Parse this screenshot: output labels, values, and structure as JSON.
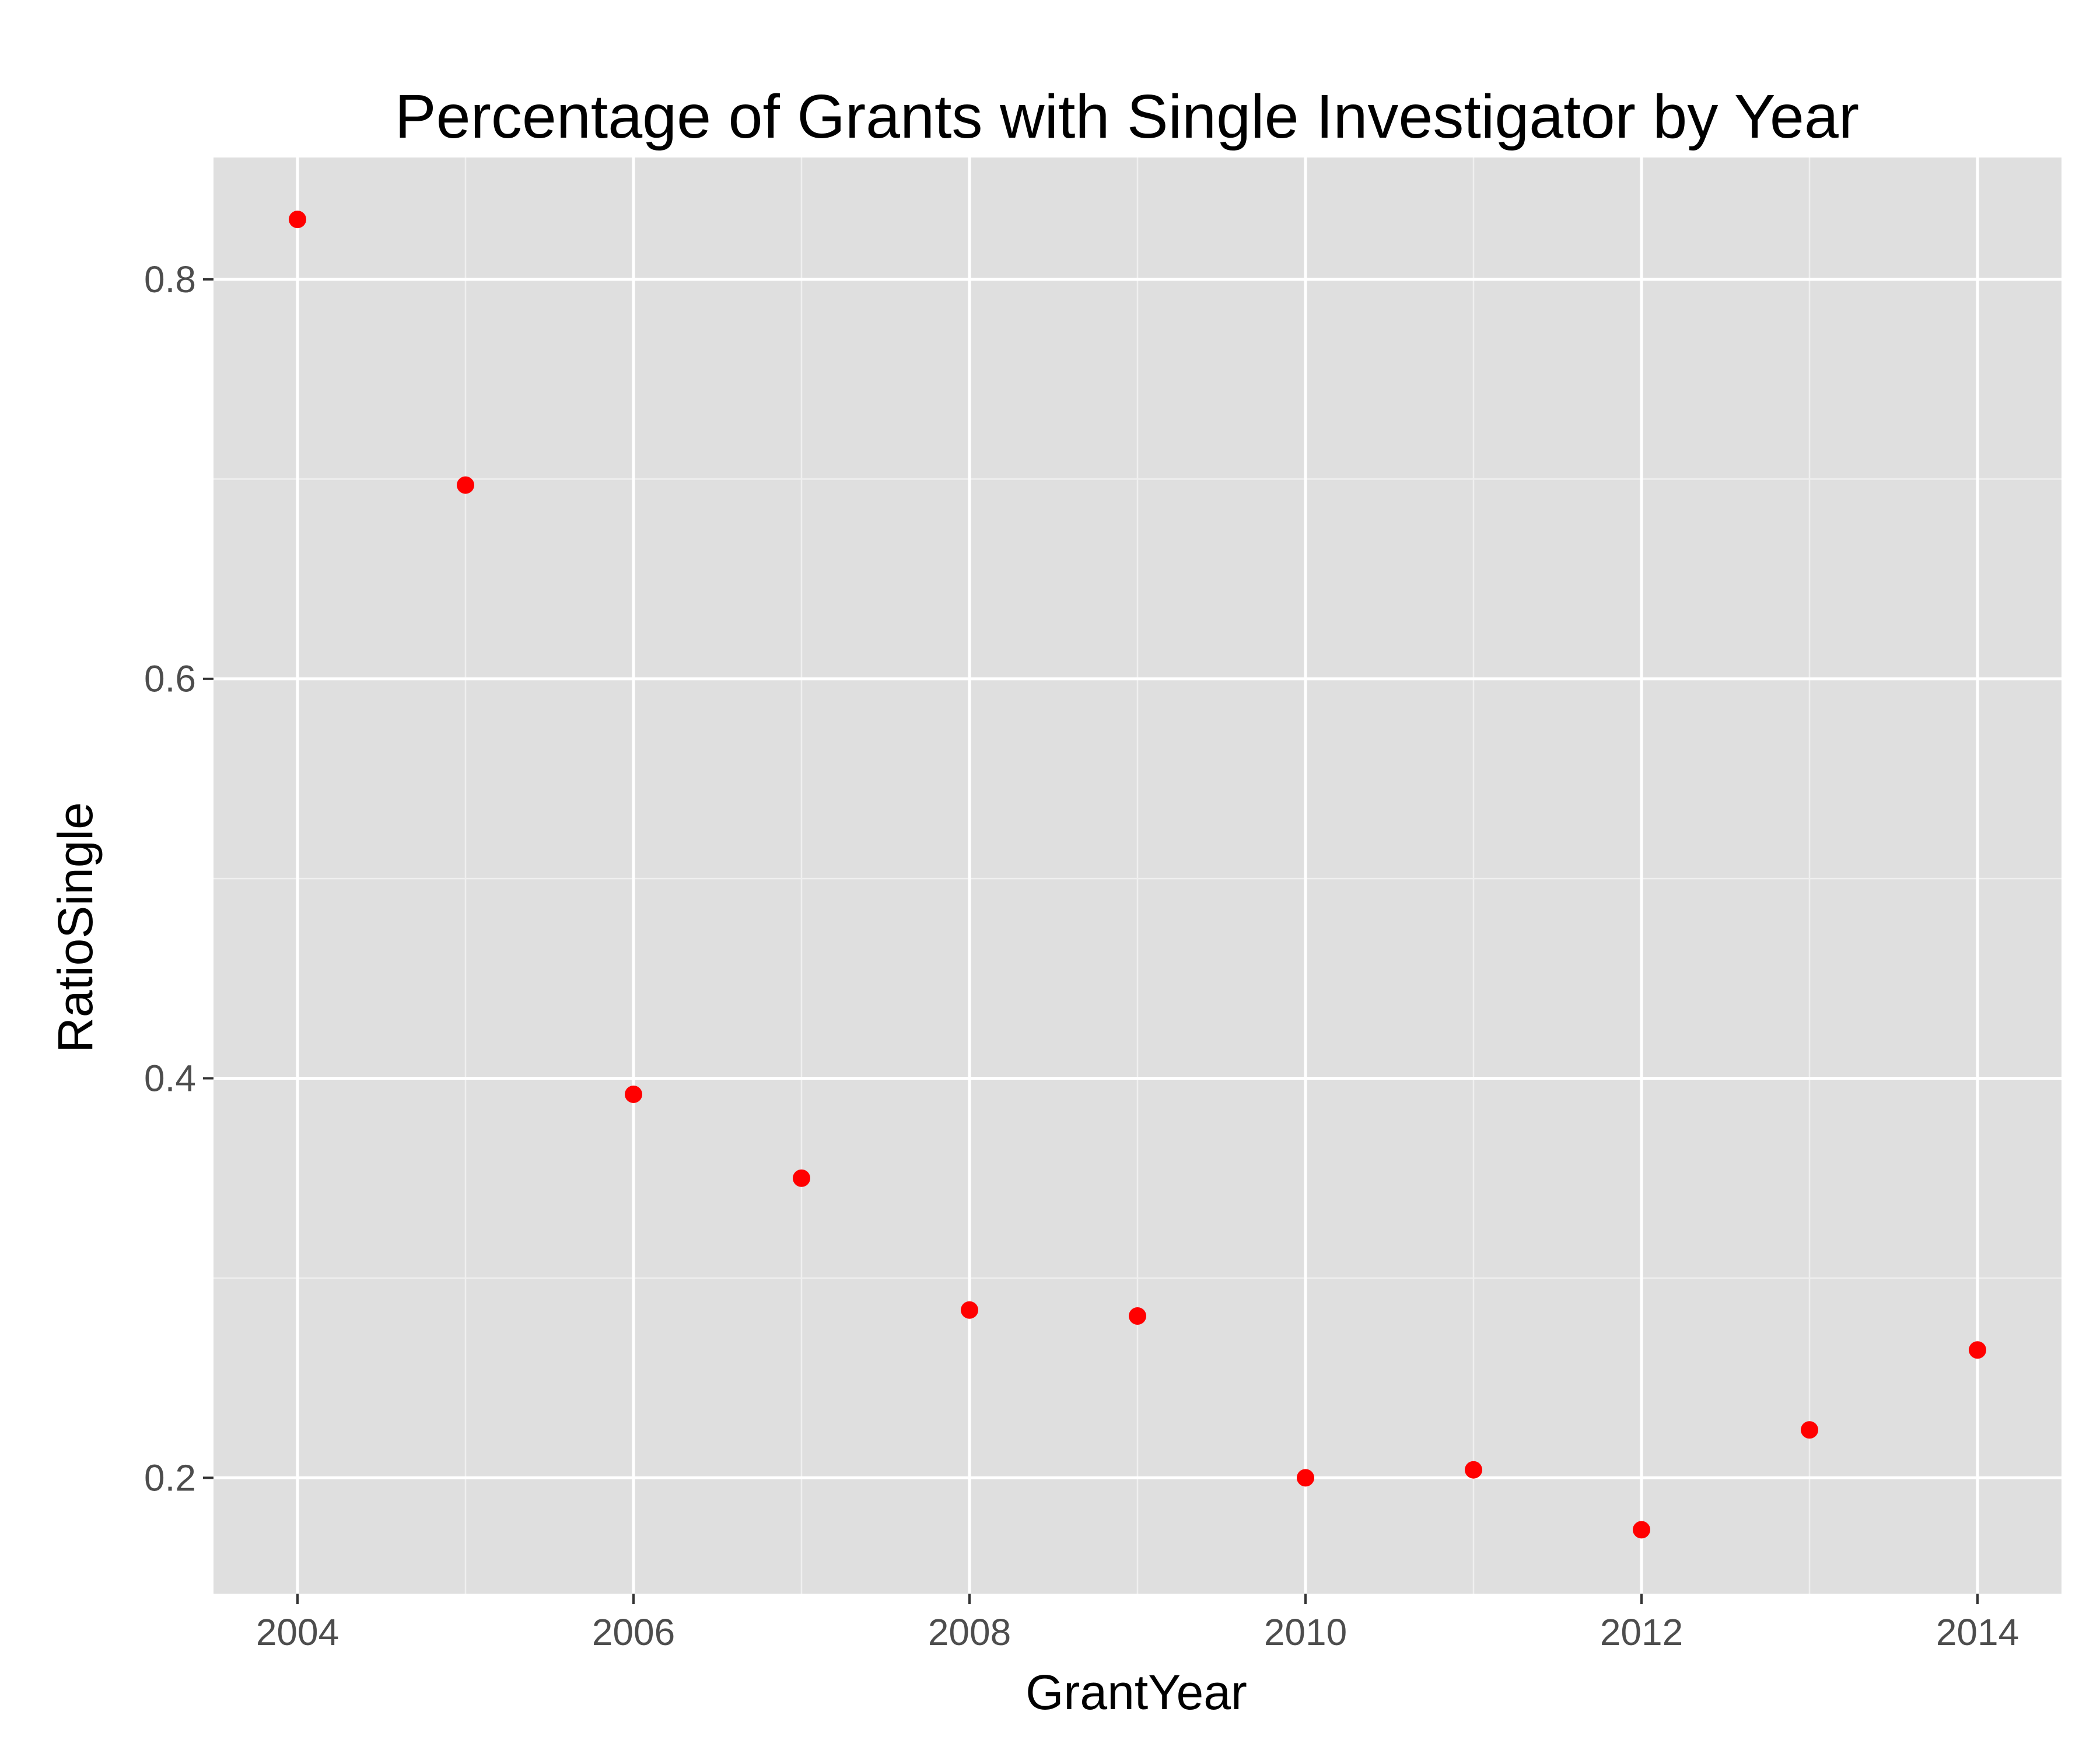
{
  "chart_data": {
    "type": "scatter",
    "title": "Percentage of Grants with Single Investigator by Year",
    "xlabel": "GrantYear",
    "ylabel": "RatioSingle",
    "x": [
      2004,
      2005,
      2006,
      2007,
      2008,
      2009,
      2010,
      2011,
      2012,
      2013,
      2014
    ],
    "y": [
      0.83,
      0.697,
      0.392,
      0.35,
      0.284,
      0.281,
      0.2,
      0.204,
      0.174,
      0.224,
      0.264
    ],
    "xlim": [
      2003.5,
      2014.5
    ],
    "ylim": [
      0.142,
      0.861
    ],
    "x_ticks": [
      2004,
      2006,
      2008,
      2010,
      2012,
      2014
    ],
    "x_tick_labels": [
      "2004",
      "2006",
      "2008",
      "2010",
      "2012",
      "2014"
    ],
    "y_ticks": [
      0.2,
      0.4,
      0.6,
      0.8
    ],
    "y_tick_labels": [
      "0.2",
      "0.4",
      "0.6",
      "0.8"
    ],
    "grid": true,
    "legend": "none",
    "colors": {
      "panel_background": "#dfdfdf",
      "grid_major": "#ffffff",
      "grid_minor": "#efefef",
      "point": "#ff0000",
      "tick_text": "#4d4d4d",
      "tick_mark": "#333333"
    }
  }
}
